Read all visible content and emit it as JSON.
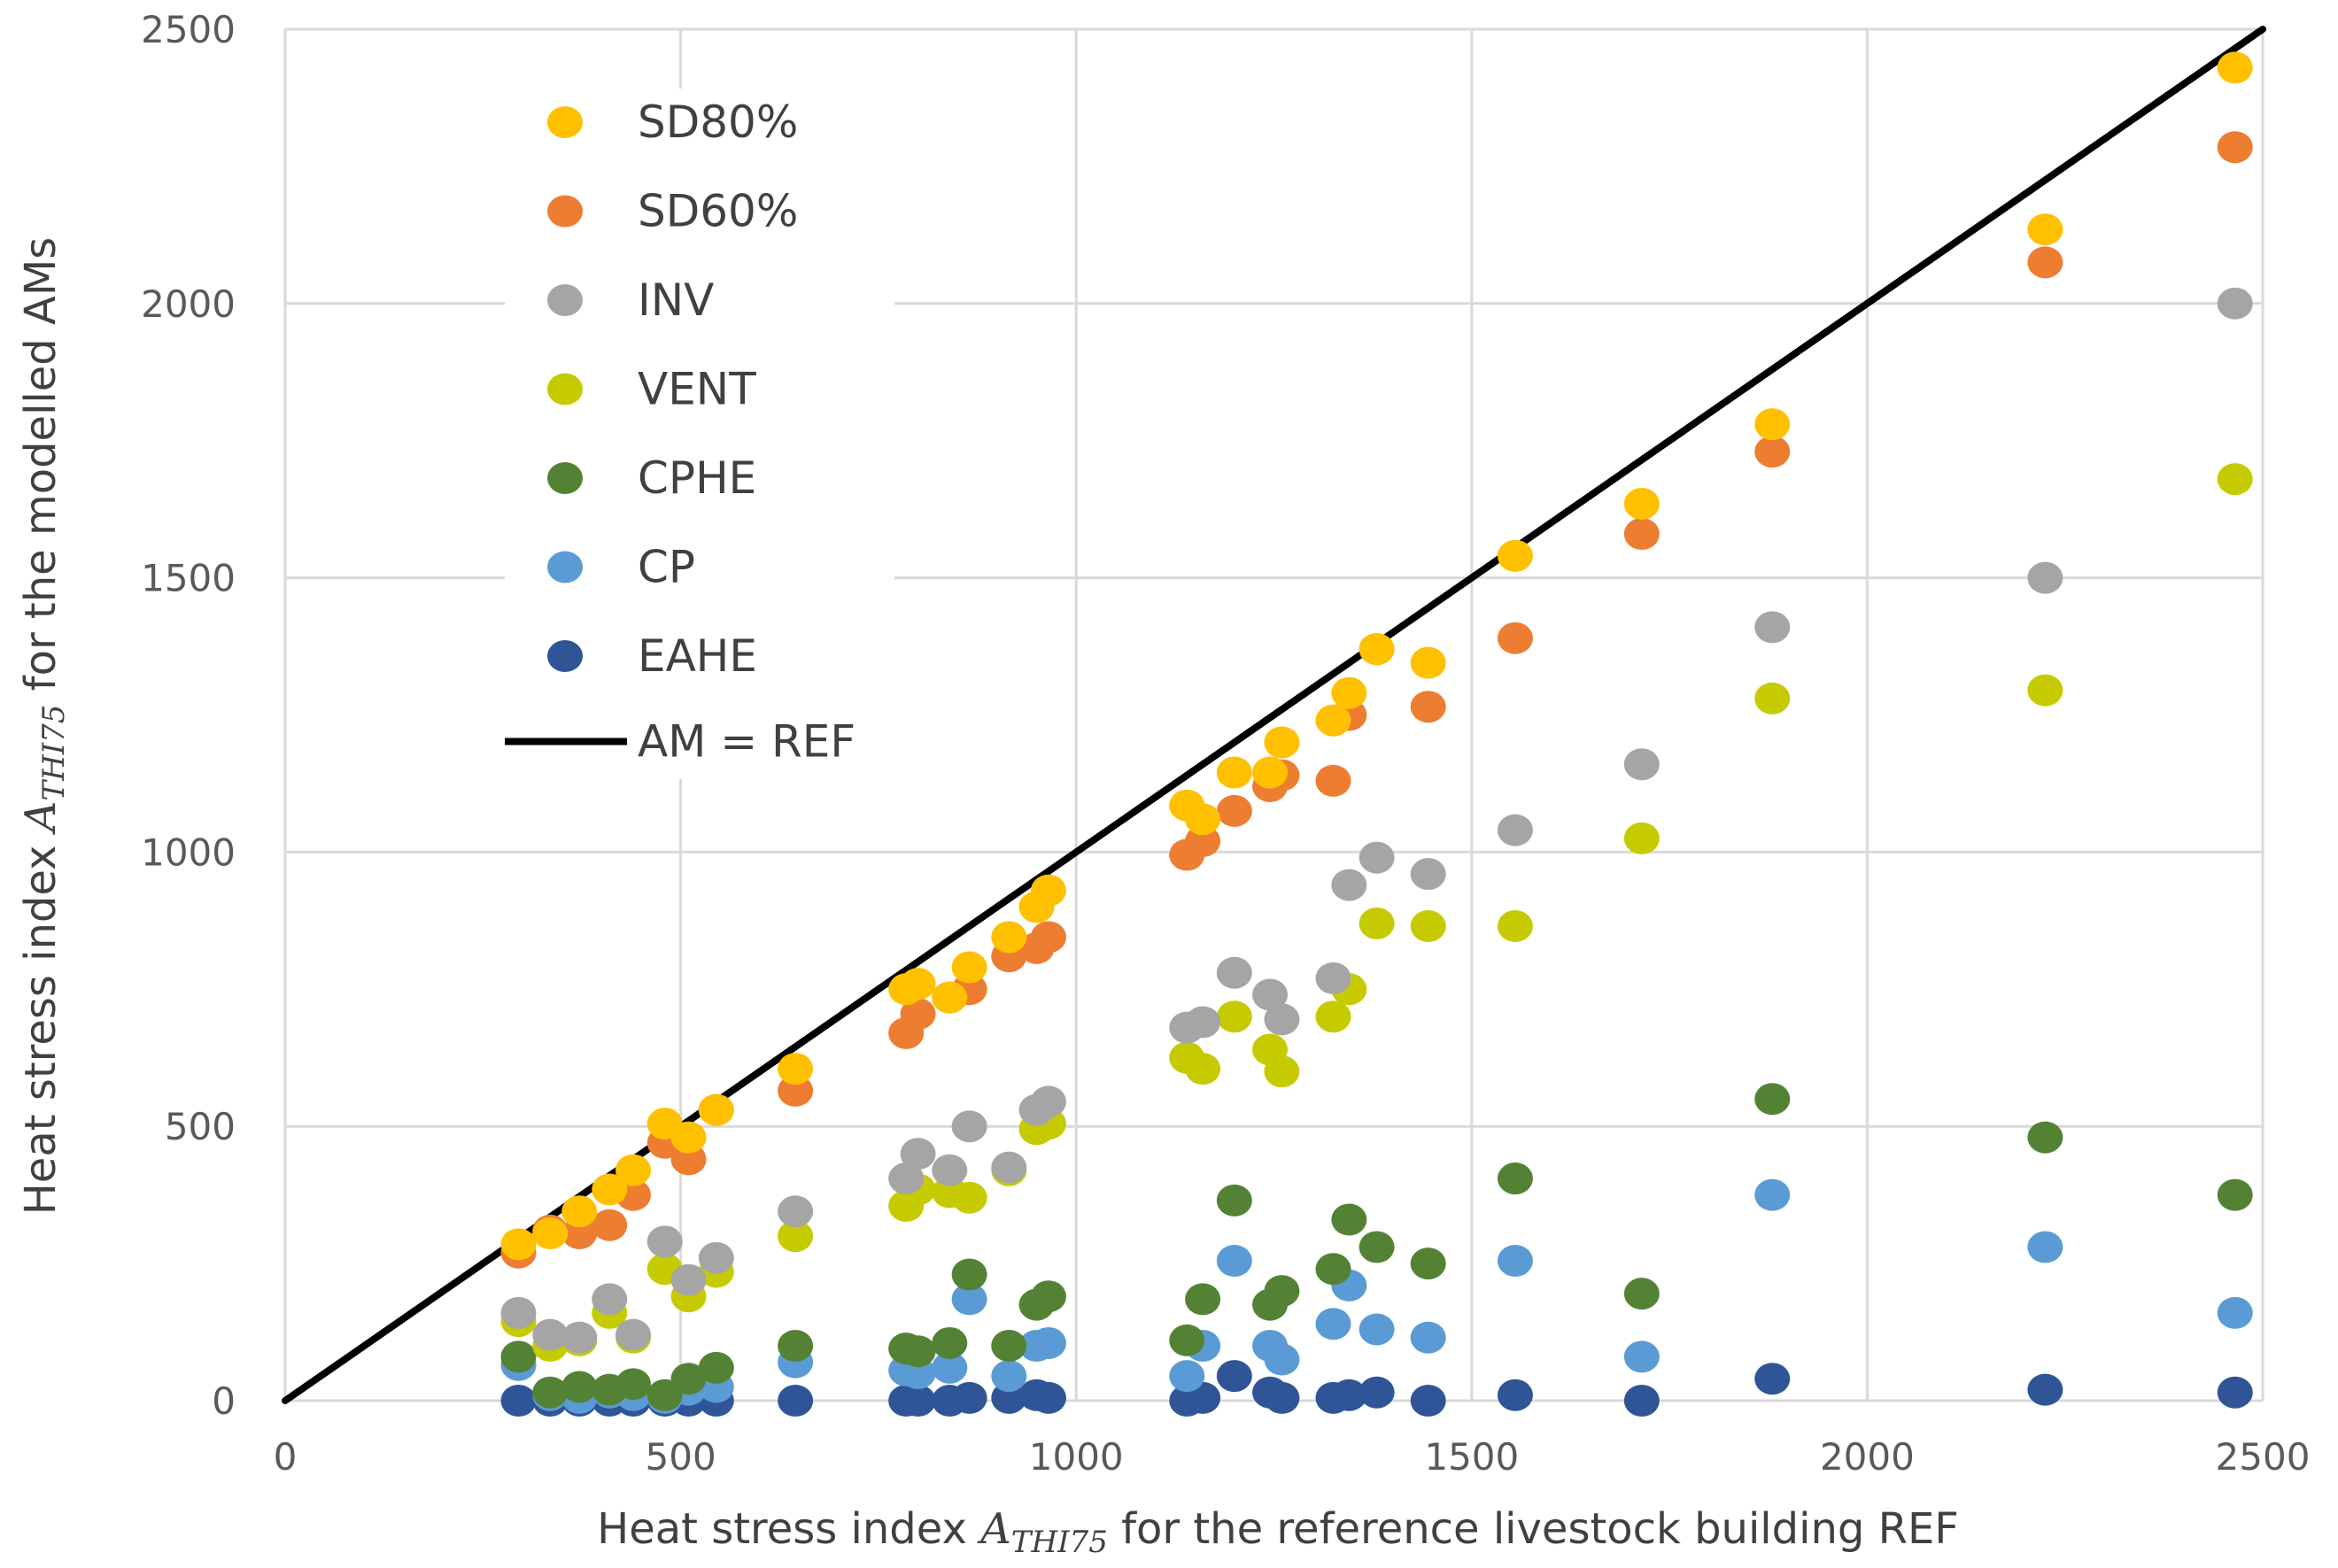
{
  "chart_data": {
    "type": "scatter",
    "title": "",
    "xlabel": {
      "pre": "Heat stress index ",
      "sym": "A",
      "sub": "THI75",
      "post": " for the reference livestock building REF"
    },
    "ylabel": {
      "pre": "Heat stress index ",
      "sym": "A",
      "sub": "THI75",
      "post": " for the modelled AMs"
    },
    "xlim": [
      0,
      2500
    ],
    "ylim": [
      0,
      2500
    ],
    "xticks": [
      0,
      500,
      1000,
      1500,
      2000,
      2500
    ],
    "yticks": [
      0,
      500,
      1000,
      1500,
      2000,
      2500
    ],
    "xtick_labels": [
      "0",
      "500",
      "1000",
      "1500",
      "2000",
      "2500"
    ],
    "ytick_labels": [
      "0",
      "500",
      "1000",
      "1500",
      "2000",
      "2500"
    ],
    "grid": true,
    "legend_position": "top-left",
    "reference_line": {
      "name": "AM = REF",
      "color": "#000000",
      "from": [
        0,
        0
      ],
      "to": [
        2500,
        2500
      ]
    },
    "x": [
      295,
      335,
      372,
      410,
      440,
      480,
      510,
      545,
      645,
      785,
      800,
      840,
      865,
      915,
      950,
      965,
      1140,
      1160,
      1200,
      1245,
      1260,
      1325,
      1345,
      1380,
      1445,
      1555,
      1715,
      1880,
      2225,
      2465
    ],
    "series": [
      {
        "name": "SD80%",
        "color": "#FFC000",
        "values": [
          285,
          305,
          345,
          385,
          420,
          505,
          480,
          530,
          605,
          750,
          760,
          735,
          790,
          845,
          900,
          930,
          1085,
          1060,
          1145,
          1145,
          1200,
          1240,
          1290,
          1370,
          1345,
          1540,
          1635,
          1780,
          2135,
          2430
        ]
      },
      {
        "name": "SD60%",
        "color": "#ED7D31",
        "values": [
          270,
          310,
          305,
          320,
          375,
          470,
          440,
          530,
          565,
          670,
          705,
          735,
          750,
          810,
          825,
          845,
          995,
          1020,
          1075,
          1120,
          1140,
          1130,
          1250,
          1370,
          1265,
          1390,
          1580,
          1730,
          2075,
          2285
        ]
      },
      {
        "name": "INV",
        "color": "#A5A5A5",
        "values": [
          160,
          120,
          115,
          185,
          120,
          290,
          220,
          260,
          345,
          405,
          450,
          420,
          500,
          425,
          530,
          545,
          680,
          690,
          780,
          740,
          695,
          770,
          940,
          990,
          960,
          1040,
          1160,
          1410,
          1500,
          2000
        ]
      },
      {
        "name": "VENT",
        "color": "#C5CB00",
        "values": [
          145,
          100,
          110,
          160,
          115,
          240,
          190,
          235,
          300,
          355,
          385,
          380,
          370,
          420,
          495,
          505,
          625,
          605,
          700,
          640,
          600,
          700,
          750,
          870,
          865,
          865,
          1025,
          1280,
          1295,
          1680
        ]
      },
      {
        "name": "CPHE",
        "color": "#548235",
        "values": [
          80,
          15,
          25,
          20,
          30,
          10,
          40,
          60,
          100,
          95,
          90,
          105,
          230,
          100,
          175,
          190,
          110,
          185,
          365,
          175,
          200,
          240,
          330,
          280,
          250,
          405,
          195,
          550,
          480,
          375
        ]
      },
      {
        "name": "CP",
        "color": "#5B9BD5",
        "values": [
          65,
          10,
          5,
          15,
          10,
          5,
          20,
          25,
          70,
          55,
          50,
          60,
          185,
          45,
          100,
          105,
          45,
          100,
          255,
          100,
          75,
          140,
          210,
          130,
          115,
          255,
          80,
          375,
          280,
          160
        ]
      },
      {
        "name": "EAHE",
        "color": "#2F5597",
        "values": [
          0,
          0,
          0,
          0,
          0,
          0,
          0,
          0,
          0,
          0,
          0,
          0,
          5,
          5,
          10,
          5,
          0,
          5,
          45,
          15,
          5,
          5,
          10,
          15,
          0,
          10,
          0,
          40,
          20,
          15
        ]
      }
    ]
  }
}
